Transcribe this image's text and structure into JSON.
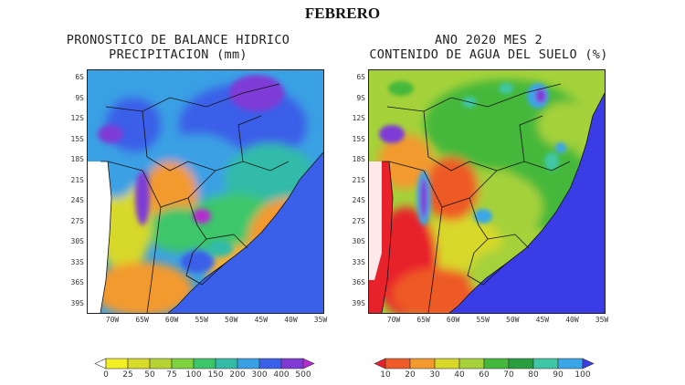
{
  "page": {
    "title": "FEBRERO"
  },
  "maps": [
    {
      "title_line1": "PRONOSTICO DE BALANCE HIDRICO",
      "title_line2": "PRECIPITACION (mm)",
      "colorbar": {
        "labels": [
          "0",
          "25",
          "50",
          "75",
          "100",
          "150",
          "200",
          "300",
          "400",
          "500"
        ],
        "colors": [
          "#ffffff",
          "#f2f024",
          "#d7d92b",
          "#b5d434",
          "#7fd13d",
          "#3cc66a",
          "#33bba8",
          "#3aa0e4",
          "#3a5fe8",
          "#7f3ad6",
          "#b52ad0"
        ]
      }
    },
    {
      "title_line1": "ANO 2020 MES 2",
      "title_line2": "CONTENIDO DE AGUA DEL SUELO (%)",
      "colorbar": {
        "labels": [
          "10",
          "20",
          "30",
          "40",
          "60",
          "70",
          "80",
          "90",
          "100"
        ],
        "colors": [
          "#e8222a",
          "#ee5a28",
          "#f39a2e",
          "#d8d82a",
          "#a5d23a",
          "#44b83a",
          "#2a9e3e",
          "#3fc6a4",
          "#3aa6e8",
          "#3a3ce6"
        ]
      }
    }
  ],
  "axes": {
    "lat_labels": [
      "6S",
      "9S",
      "12S",
      "15S",
      "18S",
      "21S",
      "24S",
      "27S",
      "30S",
      "33S",
      "36S",
      "39S"
    ],
    "lon_labels": [
      "70W",
      "65W",
      "60W",
      "55W",
      "50W",
      "45W",
      "40W",
      "35W"
    ]
  }
}
